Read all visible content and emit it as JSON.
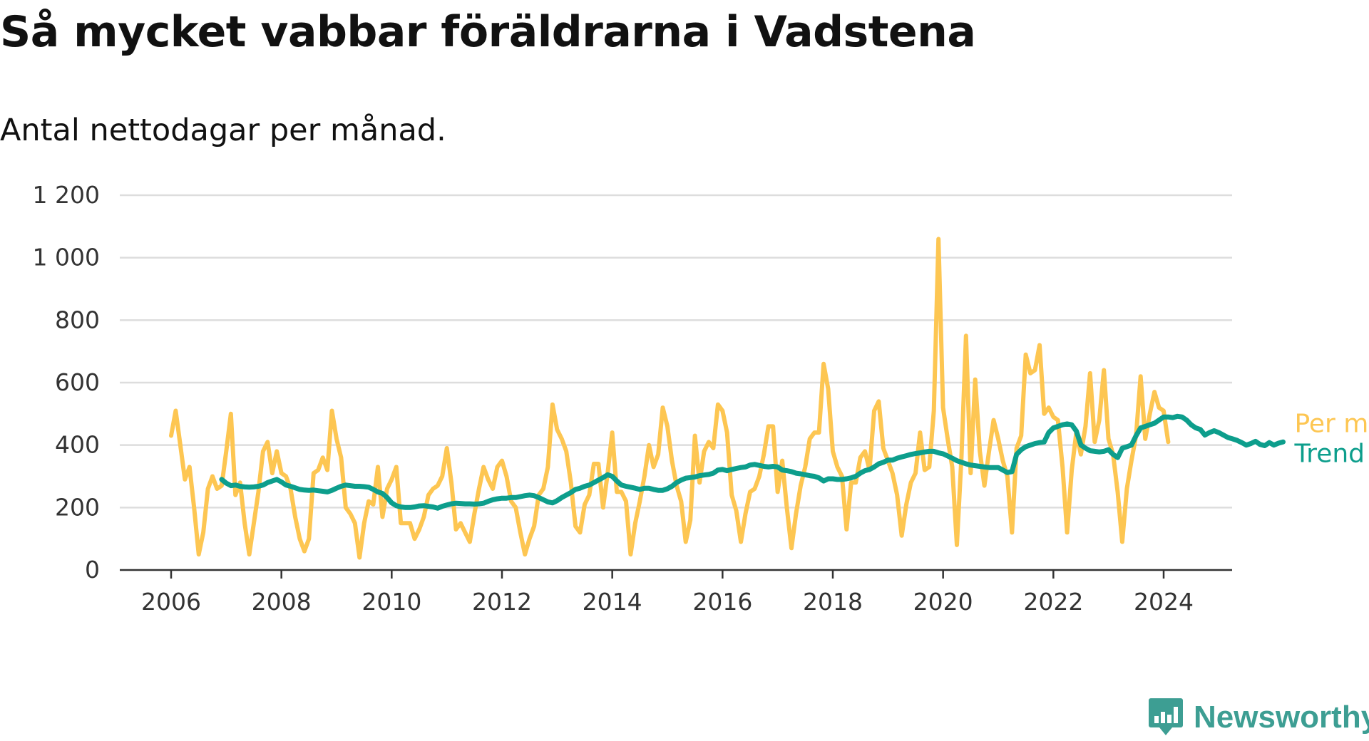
{
  "title": "Så mycket vabbar föräldrarna i Vadstena",
  "subtitle": "Antal nettodagar per månad.",
  "brand": {
    "name": "Newsworthy",
    "color": "#3d9e93",
    "icon": "newsworthy-chart-bubble-icon"
  },
  "colors": {
    "monthly": "#fdc652",
    "trend": "#0d9e8c",
    "grid": "#dddddd",
    "axis": "#333333",
    "tick_text": "#333333"
  },
  "chart_data": {
    "type": "line",
    "xlim": [
      2006,
      2024.4
    ],
    "ylim": [
      0,
      1200
    ],
    "yticks": [
      0,
      200,
      400,
      600,
      800,
      1000,
      1200
    ],
    "ytick_labels": [
      "0",
      "200",
      "400",
      "600",
      "800",
      "1 000",
      "1 200"
    ],
    "xticks": [
      2006,
      2008,
      2010,
      2012,
      2014,
      2016,
      2018,
      2020,
      2022,
      2024
    ],
    "xtick_labels": [
      "2006",
      "2008",
      "2010",
      "2012",
      "2014",
      "2016",
      "2018",
      "2020",
      "2022",
      "2024"
    ],
    "grid": true,
    "legend": "right-end labels",
    "series": [
      {
        "name": "Per månad",
        "start": 2006.0,
        "step": 0.08333,
        "values": [
          430,
          510,
          400,
          290,
          330,
          200,
          50,
          120,
          260,
          300,
          260,
          270,
          380,
          500,
          240,
          280,
          150,
          50,
          150,
          250,
          380,
          410,
          310,
          380,
          310,
          300,
          260,
          170,
          100,
          60,
          100,
          310,
          320,
          360,
          320,
          510,
          420,
          360,
          200,
          180,
          150,
          40,
          150,
          220,
          210,
          330,
          170,
          260,
          290,
          330,
          150,
          150,
          150,
          100,
          130,
          170,
          240,
          260,
          270,
          300,
          390,
          280,
          130,
          150,
          120,
          90,
          180,
          260,
          330,
          290,
          260,
          330,
          350,
          300,
          220,
          200,
          120,
          50,
          100,
          140,
          240,
          260,
          330,
          530,
          450,
          420,
          380,
          280,
          140,
          120,
          210,
          240,
          340,
          340,
          200,
          310,
          440,
          250,
          250,
          220,
          50,
          150,
          220,
          300,
          400,
          330,
          370,
          520,
          460,
          350,
          270,
          220,
          90,
          160,
          430,
          280,
          380,
          410,
          390,
          530,
          510,
          440,
          240,
          190,
          90,
          180,
          250,
          260,
          300,
          370,
          460,
          460,
          250,
          350,
          200,
          70,
          180,
          270,
          330,
          420,
          440,
          440,
          660,
          580,
          380,
          330,
          300,
          130,
          280,
          280,
          360,
          380,
          320,
          510,
          540,
          390,
          350,
          310,
          240,
          110,
          210,
          280,
          310,
          440,
          320,
          330,
          510,
          1060,
          520,
          420,
          330,
          80,
          360,
          750,
          310,
          610,
          380,
          270,
          380,
          480,
          420,
          350,
          300,
          120,
          390,
          430,
          690,
          630,
          640,
          720,
          500,
          520,
          490,
          480,
          330,
          120,
          320,
          440,
          370,
          460,
          630,
          410,
          480,
          640,
          420,
          370,
          250,
          90,
          260,
          350,
          430,
          620,
          420,
          500,
          570,
          520,
          510,
          410
        ]
      },
      {
        "name": "Trend",
        "start": 2006.9167,
        "step": 0.08333,
        "values": [
          290,
          278,
          270,
          272,
          268,
          266,
          265,
          266,
          268,
          272,
          280,
          285,
          290,
          282,
          272,
          268,
          263,
          258,
          256,
          255,
          256,
          254,
          252,
          250,
          255,
          262,
          268,
          272,
          270,
          268,
          268,
          267,
          265,
          258,
          250,
          245,
          232,
          215,
          206,
          202,
          200,
          200,
          202,
          205,
          206,
          204,
          202,
          198,
          204,
          208,
          212,
          214,
          213,
          212,
          212,
          211,
          212,
          214,
          220,
          225,
          228,
          230,
          230,
          232,
          232,
          235,
          238,
          240,
          238,
          232,
          225,
          218,
          215,
          222,
          232,
          240,
          248,
          258,
          262,
          268,
          272,
          280,
          288,
          296,
          305,
          300,
          285,
          272,
          268,
          265,
          262,
          258,
          262,
          262,
          258,
          255,
          255,
          260,
          268,
          280,
          288,
          294,
          296,
          298,
          302,
          304,
          306,
          310,
          320,
          322,
          318,
          322,
          325,
          328,
          330,
          336,
          338,
          335,
          332,
          330,
          332,
          330,
          320,
          318,
          315,
          310,
          308,
          305,
          302,
          300,
          295,
          285,
          292,
          292,
          290,
          290,
          292,
          295,
          300,
          310,
          318,
          322,
          330,
          340,
          345,
          352,
          352,
          358,
          362,
          366,
          370,
          373,
          375,
          378,
          380,
          380,
          375,
          372,
          365,
          358,
          350,
          345,
          340,
          336,
          334,
          332,
          330,
          328,
          328,
          328,
          320,
          312,
          315,
          370,
          385,
          395,
          400,
          405,
          408,
          410,
          440,
          455,
          460,
          465,
          468,
          465,
          445,
          400,
          390,
          382,
          380,
          378,
          380,
          385,
          370,
          360,
          390,
          395,
          400,
          430,
          455,
          460,
          465,
          470,
          480,
          490,
          490,
          488,
          492,
          490,
          480,
          465,
          455,
          450,
          432,
          440,
          446,
          440,
          432,
          424,
          420,
          415,
          408,
          400,
          405,
          412,
          402,
          398,
          408,
          400,
          406,
          410
        ]
      }
    ]
  }
}
